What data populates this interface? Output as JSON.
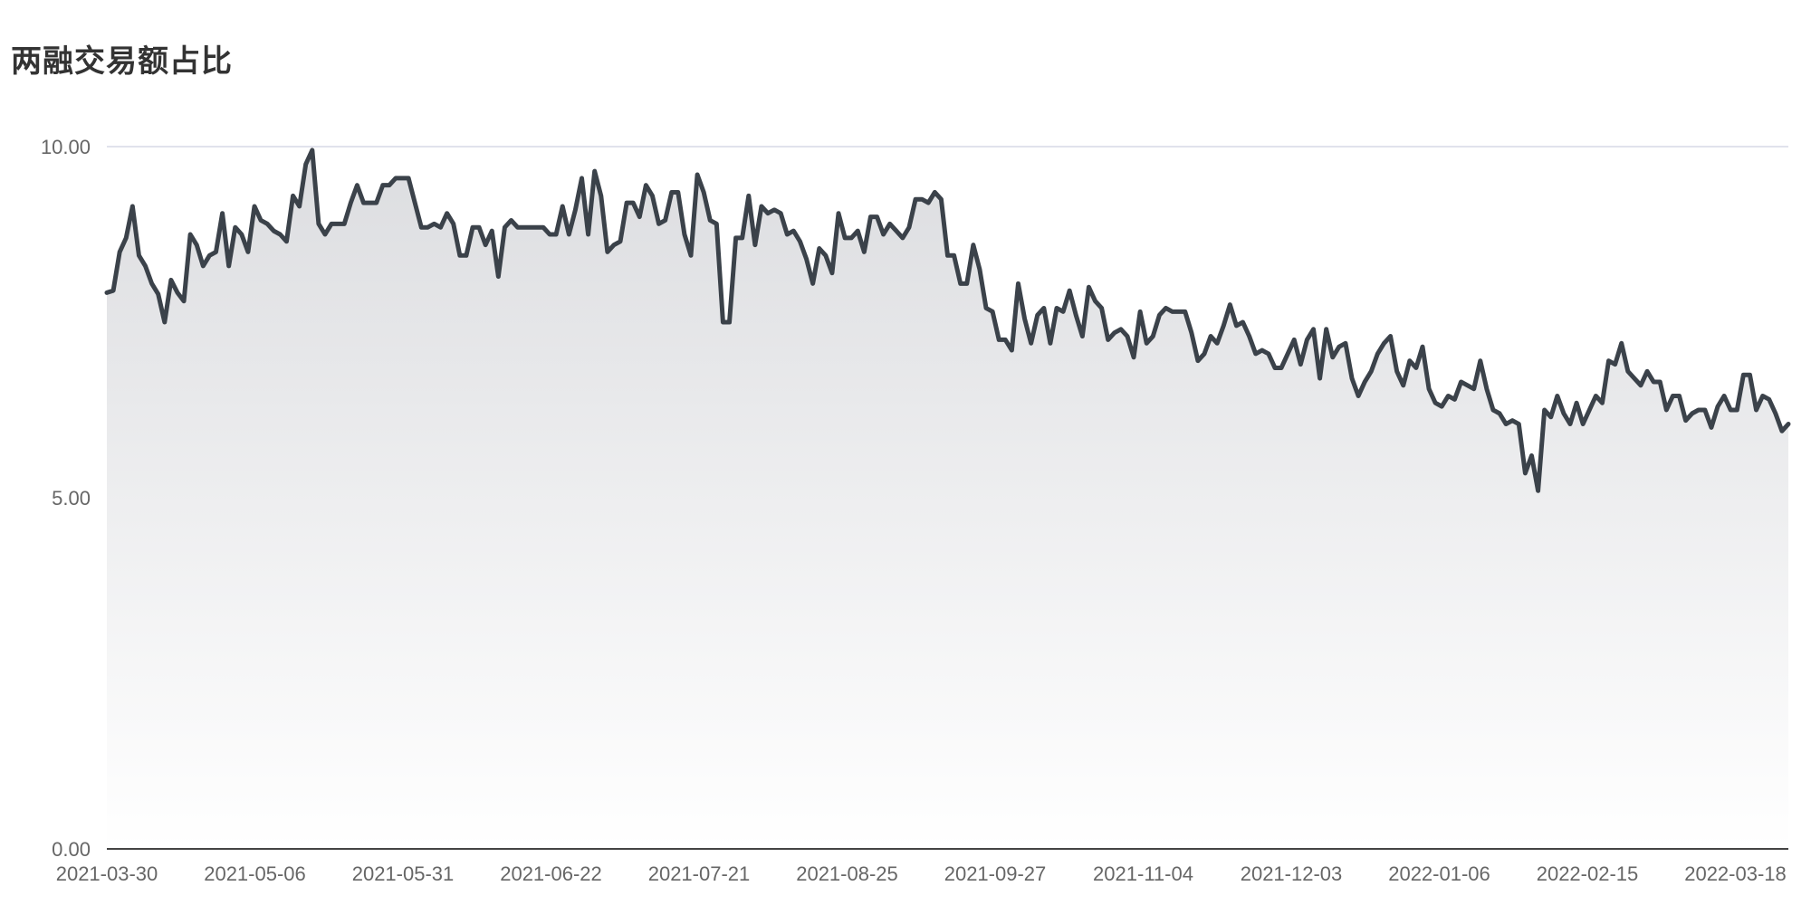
{
  "chart_data": {
    "type": "area",
    "title": "两融交易额占比",
    "xlabel": "",
    "ylabel": "",
    "ylim": [
      0,
      10
    ],
    "grid": true,
    "yticks": [
      "0.00",
      "5.00",
      "10.00"
    ],
    "xticks": [
      "2021-03-30",
      "2021-05-06",
      "2021-05-31",
      "2021-06-22",
      "2021-07-21",
      "2021-08-25",
      "2021-09-27",
      "2021-11-04",
      "2021-12-03",
      "2022-01-06",
      "2022-02-15",
      "2022-03-18"
    ],
    "colors": {
      "line": "#3b424a",
      "fill_top": "#dcdde0",
      "fill_bottom": "#ffffff",
      "grid": "#d7d9e6",
      "axis": "#444444"
    },
    "series": [
      {
        "values": [
          7.92,
          7.95,
          8.5,
          8.7,
          9.15,
          8.45,
          8.3,
          8.05,
          7.9,
          7.5,
          8.1,
          7.92,
          7.8,
          8.75,
          8.6,
          8.3,
          8.45,
          8.5,
          9.05,
          8.3,
          8.85,
          8.75,
          8.5,
          9.15,
          8.95,
          8.9,
          8.8,
          8.75,
          8.65,
          9.3,
          9.15,
          9.75,
          9.95,
          8.9,
          8.75,
          8.9,
          8.9,
          8.9,
          9.2,
          9.45,
          9.2,
          9.2,
          9.2,
          9.45,
          9.45,
          9.55,
          9.55,
          9.55,
          9.2,
          8.85,
          8.85,
          8.9,
          8.85,
          9.05,
          8.9,
          8.45,
          8.45,
          8.85,
          8.85,
          8.6,
          8.8,
          8.15,
          8.85,
          8.95,
          8.85,
          8.85,
          8.85,
          8.85,
          8.85,
          8.75,
          8.75,
          9.15,
          8.75,
          9.1,
          9.55,
          8.75,
          9.65,
          9.3,
          8.5,
          8.6,
          8.65,
          9.2,
          9.2,
          9.0,
          9.45,
          9.3,
          8.9,
          8.95,
          9.35,
          9.35,
          8.75,
          8.45,
          9.6,
          9.35,
          8.95,
          8.9,
          7.5,
          7.5,
          8.7,
          8.7,
          9.3,
          8.6,
          9.15,
          9.05,
          9.1,
          9.05,
          8.75,
          8.8,
          8.65,
          8.4,
          8.05,
          8.55,
          8.45,
          8.2,
          9.05,
          8.7,
          8.7,
          8.8,
          8.5,
          9.0,
          9.0,
          8.75,
          8.9,
          8.8,
          8.7,
          8.85,
          9.25,
          9.25,
          9.2,
          9.35,
          9.25,
          8.45,
          8.45,
          8.05,
          8.05,
          8.6,
          8.25,
          7.7,
          7.65,
          7.25,
          7.25,
          7.1,
          8.05,
          7.55,
          7.2,
          7.6,
          7.7,
          7.2,
          7.7,
          7.65,
          7.95,
          7.6,
          7.3,
          8.0,
          7.8,
          7.7,
          7.25,
          7.35,
          7.4,
          7.3,
          7.0,
          7.65,
          7.2,
          7.3,
          7.6,
          7.7,
          7.65,
          7.65,
          7.65,
          7.35,
          6.95,
          7.05,
          7.3,
          7.2,
          7.45,
          7.75,
          7.45,
          7.5,
          7.3,
          7.05,
          7.1,
          7.05,
          6.85,
          6.85,
          7.05,
          7.25,
          6.9,
          7.25,
          7.4,
          6.7,
          7.4,
          7.0,
          7.15,
          7.2,
          6.7,
          6.45,
          6.65,
          6.8,
          7.05,
          7.2,
          7.3,
          6.8,
          6.6,
          6.95,
          6.85,
          7.15,
          6.55,
          6.35,
          6.3,
          6.45,
          6.4,
          6.65,
          6.6,
          6.55,
          6.95,
          6.55,
          6.25,
          6.2,
          6.05,
          6.1,
          6.05,
          5.35,
          5.6,
          5.1,
          6.25,
          6.15,
          6.45,
          6.2,
          6.05,
          6.35,
          6.05,
          6.25,
          6.45,
          6.35,
          6.95,
          6.9,
          7.2,
          6.8,
          6.7,
          6.6,
          6.8,
          6.65,
          6.65,
          6.25,
          6.45,
          6.45,
          6.1,
          6.2,
          6.25,
          6.25,
          6.0,
          6.3,
          6.45,
          6.25,
          6.25,
          6.75,
          6.75,
          6.25,
          6.45,
          6.4,
          6.2,
          5.95,
          6.05
        ]
      }
    ]
  }
}
